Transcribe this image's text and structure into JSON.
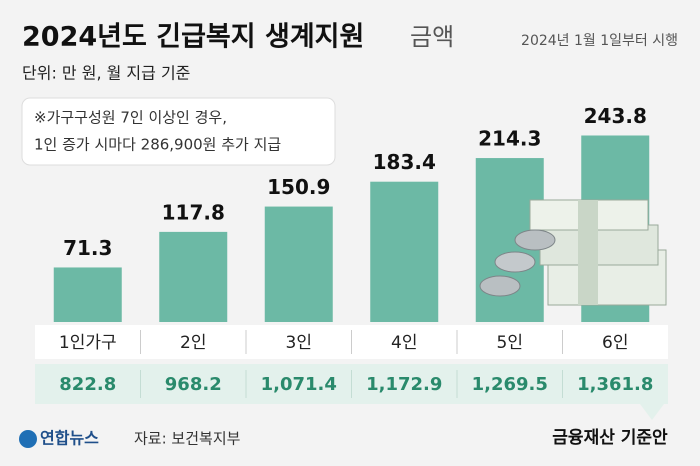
{
  "chart_data": {
    "type": "bar",
    "title": "2024년도 긴급복지 생계지원",
    "title_suffix": "금액",
    "subtitle": "2024년 1월 1일부터 시행",
    "unit_note": "단위: 만 원, 월 지급 기준",
    "note": [
      "※가구구성원 7인 이상인 경우,",
      "1인 증가 시마다 286,900원 추가 지급"
    ],
    "categories": [
      "1인가구",
      "2인",
      "3인",
      "4인",
      "5인",
      "6인"
    ],
    "values": [
      71.3,
      117.8,
      150.9,
      183.4,
      214.3,
      243.8
    ],
    "color": "#6cb9a5",
    "table_row": {
      "values": [
        822.8,
        968.2,
        1071.4,
        1172.9,
        1269.5,
        1361.8
      ],
      "value_labels": [
        "822.8",
        "968.2",
        "1,071.4",
        "1,172.9",
        "1,269.5",
        "1,361.8"
      ],
      "color": "#2a8a6c",
      "caption": "금융재산 기준안"
    },
    "source": "자료: 보건복지부",
    "logo": "연합뉴스"
  }
}
